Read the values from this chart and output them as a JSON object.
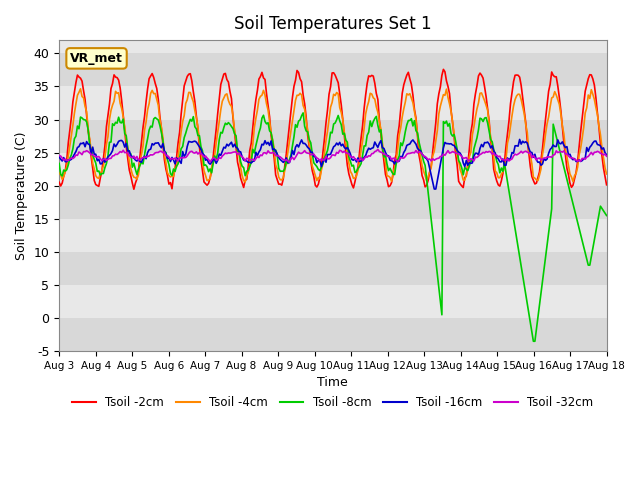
{
  "title": "Soil Temperatures Set 1",
  "xlabel": "Time",
  "ylabel": "Soil Temperature (C)",
  "ylim": [
    -5,
    42
  ],
  "xlim": [
    0,
    15
  ],
  "background_color": "#ffffff",
  "plot_bg_bands": [
    "#d8d8d8",
    "#e8e8e8"
  ],
  "annotation_label": "VR_met",
  "x_tick_labels": [
    "Aug 3",
    "Aug 4",
    "Aug 5",
    "Aug 6",
    "Aug 7",
    "Aug 8",
    "Aug 9",
    "Aug 10",
    "Aug 11",
    "Aug 12",
    "Aug 13",
    "Aug 14",
    "Aug 15",
    "Aug 16",
    "Aug 17",
    "Aug 18"
  ],
  "series": {
    "Tsoil -2cm": {
      "color": "#ff0000",
      "lw": 1.2
    },
    "Tsoil -4cm": {
      "color": "#ff8800",
      "lw": 1.2
    },
    "Tsoil -8cm": {
      "color": "#00cc00",
      "lw": 1.2
    },
    "Tsoil -16cm": {
      "color": "#0000cc",
      "lw": 1.2
    },
    "Tsoil -32cm": {
      "color": "#cc00cc",
      "lw": 1.2
    }
  }
}
